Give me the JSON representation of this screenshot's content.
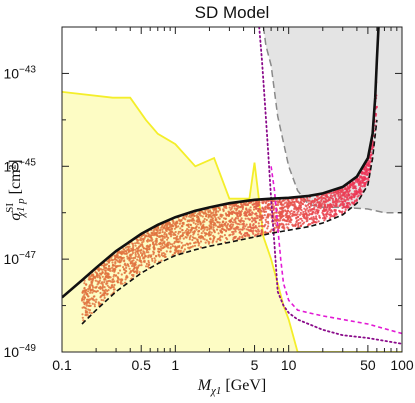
{
  "chart_data": {
    "type": "scatter",
    "title": "SD Model",
    "xlabel": {
      "main": "M",
      "sub": "χ1",
      "unit": " [GeV]"
    },
    "ylabel": {
      "main": "σ",
      "sup": "SI",
      "sub": "χ1 p",
      "unit": " [cm²]"
    },
    "x_scale": "log",
    "y_scale": "log",
    "xlim": [
      0.1,
      100
    ],
    "ylim": [
      1e-49,
      1e-42
    ],
    "x_ticks": [
      {
        "value": 0.1,
        "label": "0.1"
      },
      {
        "value": 0.5,
        "label": "0.5"
      },
      {
        "value": 1,
        "label": "1"
      },
      {
        "value": 5,
        "label": "5"
      },
      {
        "value": 10,
        "label": "10"
      },
      {
        "value": 50,
        "label": "50"
      },
      {
        "value": 100,
        "label": "100"
      }
    ],
    "y_ticks": [
      {
        "value": 1e-49,
        "base": "10",
        "exp": "−49"
      },
      {
        "value": 1e-47,
        "base": "10",
        "exp": "−47"
      },
      {
        "value": 1e-45,
        "base": "10",
        "exp": "−45"
      },
      {
        "value": 1e-43,
        "base": "10",
        "exp": "−43"
      }
    ],
    "colors": {
      "yellow_fill": "#fdfcc4",
      "yellow_line": "#f4ee2a",
      "gray_fill": "#e4e4e4",
      "gray_line": "#8a8a8a",
      "points_low": "#e0733f",
      "points_high": "#ee2f5a",
      "boundary": "#111111",
      "magenta": "#e21ad4",
      "purple": "#8a0a8a"
    },
    "series": [
      {
        "style": "yellow-filled-region",
        "x": [
          0.1,
          0.28,
          0.4,
          0.55,
          0.7,
          1.0,
          1.5,
          2.2,
          3.0,
          4.5,
          5.0,
          6.0,
          7.0,
          8.0,
          9.0,
          10,
          12,
          20,
          40,
          100
        ],
        "y": [
          4e-44,
          3e-44,
          3e-44,
          1e-44,
          5e-45,
          3e-45,
          1e-45,
          1.5e-45,
          2e-46,
          2e-46,
          1.2e-45,
          3e-47,
          1e-47,
          3e-48,
          1e-48,
          5e-49,
          1e-49,
          1e-49,
          1e-49,
          1e-49
        ]
      },
      {
        "style": "gray-dashed-region",
        "x": [
          6,
          6.3,
          7,
          8,
          10,
          12,
          15,
          20,
          30,
          50,
          70,
          100
        ],
        "y": [
          1e-42,
          4e-43,
          1.5e-43,
          1.2e-44,
          1e-45,
          3e-46,
          1.5e-46,
          1.3e-46,
          1.3e-46,
          1.2e-46,
          1e-46,
          1e-46
        ]
      },
      {
        "style": "magenta-dashed",
        "x": [
          7,
          7.5,
          8,
          8.5,
          9,
          10,
          12,
          15,
          20,
          30,
          50,
          100
        ],
        "y": [
          1e-45,
          3e-46,
          5e-47,
          1e-47,
          3e-48,
          1.3e-48,
          8e-49,
          7e-49,
          6e-49,
          5e-49,
          4e-49,
          2.5e-49
        ]
      },
      {
        "style": "purple-dotted",
        "x": [
          5.5,
          5.8,
          6.2,
          6.6,
          7,
          7.5,
          8,
          9,
          10,
          12,
          15,
          20,
          30,
          50,
          100
        ],
        "y": [
          1e-42,
          2e-43,
          2e-44,
          2e-45,
          2e-46,
          2e-47,
          2e-48,
          1e-48,
          7e-49,
          5e-49,
          4e-49,
          3e-49,
          2.3e-49,
          2e-49,
          1.5e-49
        ]
      },
      {
        "style": "upper-boundary-solid",
        "x": [
          0.1,
          0.15,
          0.2,
          0.3,
          0.5,
          0.7,
          1,
          1.5,
          2,
          3,
          5,
          7,
          10,
          15,
          20,
          30,
          40,
          50,
          55,
          58,
          60,
          62
        ],
        "y": [
          1.5e-48,
          3.5e-48,
          6.5e-48,
          1.5e-47,
          3.5e-47,
          5.5e-47,
          8e-47,
          1.1e-46,
          1.3e-46,
          1.6e-46,
          1.9e-46,
          2e-46,
          2.1e-46,
          2.3e-46,
          2.6e-46,
          3.6e-46,
          6e-46,
          1.5e-45,
          5e-45,
          3e-44,
          2e-43,
          1e-42
        ]
      },
      {
        "style": "lower-boundary-dashed",
        "x": [
          0.15,
          0.2,
          0.3,
          0.5,
          0.7,
          1,
          1.5,
          2,
          3,
          5,
          7,
          10,
          15,
          20,
          30,
          40,
          50,
          55,
          60
        ],
        "y": [
          4e-49,
          8e-49,
          2e-48,
          5e-48,
          8e-48,
          1.2e-47,
          1.6e-47,
          1.9e-47,
          2.3e-47,
          3e-47,
          3.6e-47,
          4.2e-47,
          5e-47,
          6e-47,
          9e-47,
          1.6e-46,
          4e-46,
          1.5e-45,
          1e-44
        ]
      }
    ]
  }
}
